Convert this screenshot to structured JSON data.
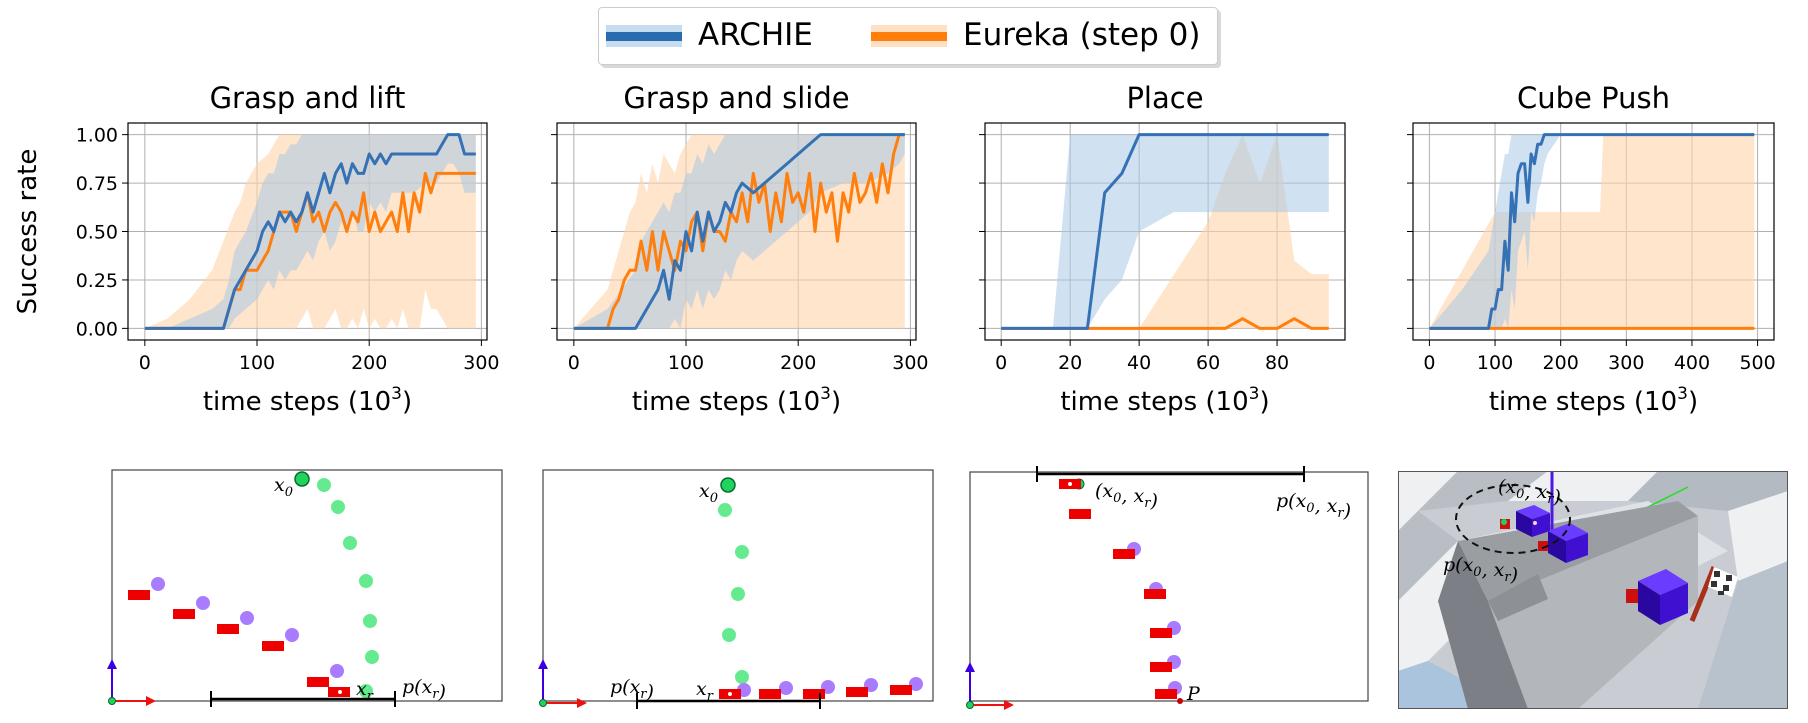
{
  "legend": [
    {
      "label": "ARCHIE",
      "color": "#2b6cb0"
    },
    {
      "label": "Eureka (step 0)",
      "color": "#ff7f0e"
    }
  ],
  "colors": {
    "archie": "#3571b5",
    "archie_band": "#aac8e6",
    "eureka": "#ff7f0e",
    "eureka_band": "#ffd3a8"
  },
  "chart_data": [
    {
      "type": "line",
      "title": "Grasp and lift",
      "xlabel": "time steps (10^3)",
      "ylabel": "Success rate",
      "xlim": [
        -15,
        305
      ],
      "ylim": [
        -0.06,
        1.06
      ],
      "xticks": [
        "0",
        "100",
        "200",
        "300"
      ],
      "yticks": [
        "0.00",
        "0.25",
        "0.50",
        "0.75",
        "1.00"
      ],
      "grid": true,
      "series": [
        {
          "name": "ARCHIE",
          "x": [
            0,
            20,
            40,
            60,
            70,
            75,
            80,
            90,
            100,
            105,
            110,
            115,
            120,
            125,
            130,
            135,
            140,
            145,
            150,
            155,
            160,
            165,
            170,
            175,
            180,
            185,
            190,
            195,
            200,
            205,
            210,
            215,
            220,
            230,
            240,
            250,
            260,
            270,
            275,
            280,
            285,
            290,
            295
          ],
          "y": [
            0,
            0,
            0,
            0,
            0,
            0.1,
            0.2,
            0.3,
            0.4,
            0.5,
            0.55,
            0.5,
            0.6,
            0.55,
            0.6,
            0.55,
            0.6,
            0.7,
            0.6,
            0.7,
            0.8,
            0.7,
            0.8,
            0.85,
            0.75,
            0.85,
            0.8,
            0.8,
            0.9,
            0.85,
            0.9,
            0.85,
            0.9,
            0.9,
            0.9,
            0.9,
            0.9,
            1.0,
            1.0,
            1.0,
            0.9,
            0.9,
            0.9
          ],
          "lower": [
            0,
            0,
            0,
            0,
            0,
            0,
            0.05,
            0.1,
            0.15,
            0.2,
            0.25,
            0.2,
            0.3,
            0.25,
            0.3,
            0.3,
            0.35,
            0.4,
            0.35,
            0.45,
            0.5,
            0.4,
            0.45,
            0.55,
            0.5,
            0.6,
            0.5,
            0.5,
            0.65,
            0.6,
            0.65,
            0.6,
            0.7,
            0.7,
            0.7,
            0.75,
            0.75,
            0.85,
            0.85,
            0.8,
            0.7,
            0.7,
            0.7
          ],
          "upper": [
            0,
            0,
            0.05,
            0.1,
            0.15,
            0.25,
            0.4,
            0.5,
            0.65,
            0.75,
            0.8,
            0.8,
            0.9,
            0.9,
            0.95,
            0.95,
            1,
            1,
            1,
            1,
            1,
            1,
            1,
            1,
            1,
            1,
            1,
            1,
            1,
            1,
            1,
            1,
            1,
            1,
            1,
            1,
            1,
            1,
            1,
            1,
            1,
            1,
            1
          ]
        },
        {
          "name": "Eureka (step 0)",
          "x": [
            0,
            20,
            40,
            60,
            70,
            80,
            85,
            90,
            100,
            110,
            115,
            120,
            125,
            130,
            135,
            140,
            145,
            150,
            155,
            160,
            165,
            170,
            175,
            180,
            185,
            190,
            195,
            200,
            205,
            210,
            215,
            220,
            225,
            230,
            235,
            240,
            245,
            250,
            255,
            260,
            270,
            280,
            290,
            295
          ],
          "y": [
            0,
            0,
            0,
            0,
            0,
            0.2,
            0.2,
            0.3,
            0.3,
            0.4,
            0.5,
            0.6,
            0.6,
            0.6,
            0.5,
            0.6,
            0.7,
            0.55,
            0.6,
            0.5,
            0.6,
            0.65,
            0.6,
            0.5,
            0.6,
            0.55,
            0.7,
            0.5,
            0.6,
            0.5,
            0.55,
            0.6,
            0.5,
            0.7,
            0.5,
            0.7,
            0.6,
            0.8,
            0.7,
            0.8,
            0.8,
            0.8,
            0.8,
            0.8
          ],
          "lower": [
            0,
            0,
            0,
            0,
            0,
            0,
            0,
            0,
            0,
            0,
            0,
            0,
            0,
            0,
            0,
            0.05,
            0.1,
            0,
            0,
            0,
            0.05,
            0.1,
            0,
            0,
            0.05,
            0,
            0.1,
            0,
            0.05,
            0,
            0,
            0.05,
            0,
            0.1,
            0,
            0,
            0,
            0.2,
            0.1,
            0.1,
            0,
            0,
            0,
            0
          ],
          "upper": [
            0,
            0.05,
            0.15,
            0.3,
            0.45,
            0.6,
            0.65,
            0.75,
            0.85,
            0.9,
            0.95,
            1,
            1,
            1,
            1,
            1,
            1,
            1,
            1,
            1,
            1,
            1,
            1,
            1,
            1,
            1,
            1,
            1,
            1,
            1,
            1,
            1,
            1,
            1,
            1,
            1,
            1,
            1,
            1,
            1,
            1,
            1,
            1,
            1
          ]
        }
      ]
    },
    {
      "type": "line",
      "title": "Grasp and slide",
      "xlabel": "time steps (10^3)",
      "ylabel": "",
      "xlim": [
        -15,
        305
      ],
      "ylim": [
        -0.06,
        1.06
      ],
      "xticks": [
        "0",
        "100",
        "200",
        "300"
      ],
      "yticks": [
        "0.00",
        "0.25",
        "0.50",
        "0.75",
        "1.00"
      ],
      "grid": true,
      "series": [
        {
          "name": "ARCHIE",
          "x": [
            0,
            30,
            55,
            60,
            70,
            75,
            80,
            85,
            90,
            95,
            100,
            105,
            110,
            115,
            120,
            125,
            130,
            135,
            140,
            145,
            150,
            160,
            170,
            180,
            190,
            200,
            210,
            220,
            240,
            260,
            280,
            290,
            295
          ],
          "y": [
            0,
            0,
            0,
            0.05,
            0.15,
            0.2,
            0.3,
            0.15,
            0.35,
            0.3,
            0.5,
            0.4,
            0.6,
            0.45,
            0.6,
            0.5,
            0.55,
            0.65,
            0.6,
            0.7,
            0.75,
            0.7,
            0.75,
            0.8,
            0.85,
            0.9,
            0.95,
            1.0,
            1.0,
            1.0,
            1.0,
            1.0,
            1.0
          ],
          "lower": [
            0,
            0,
            0,
            0,
            0,
            0,
            0,
            0,
            0.05,
            0,
            0.15,
            0.1,
            0.2,
            0.1,
            0.2,
            0.15,
            0.2,
            0.3,
            0.25,
            0.35,
            0.4,
            0.35,
            0.4,
            0.45,
            0.5,
            0.55,
            0.6,
            0.7,
            0.75,
            0.75,
            0.8,
            0.85,
            0.9
          ],
          "upper": [
            0,
            0.1,
            0.3,
            0.45,
            0.55,
            0.6,
            0.65,
            0.6,
            0.7,
            0.7,
            0.8,
            0.8,
            0.9,
            0.85,
            0.95,
            0.9,
            0.95,
            1,
            1,
            1,
            1,
            1,
            1,
            1,
            1,
            1,
            1,
            1,
            1,
            1,
            1,
            1,
            1
          ]
        },
        {
          "name": "Eureka (step 0)",
          "x": [
            0,
            30,
            35,
            40,
            45,
            50,
            55,
            60,
            65,
            70,
            75,
            80,
            85,
            90,
            95,
            100,
            105,
            110,
            115,
            120,
            125,
            130,
            135,
            140,
            145,
            150,
            155,
            160,
            165,
            170,
            175,
            180,
            185,
            190,
            195,
            200,
            205,
            210,
            215,
            220,
            225,
            230,
            235,
            240,
            245,
            250,
            255,
            260,
            265,
            270,
            275,
            280,
            285,
            290,
            295
          ],
          "y": [
            0,
            0,
            0.1,
            0.15,
            0.25,
            0.3,
            0.3,
            0.45,
            0.3,
            0.5,
            0.3,
            0.5,
            0.4,
            0.3,
            0.45,
            0.4,
            0.55,
            0.6,
            0.4,
            0.6,
            0.5,
            0.5,
            0.45,
            0.6,
            0.55,
            0.7,
            0.55,
            0.8,
            0.65,
            0.75,
            0.5,
            0.7,
            0.55,
            0.8,
            0.65,
            0.7,
            0.6,
            0.8,
            0.5,
            0.75,
            0.6,
            0.7,
            0.45,
            0.7,
            0.6,
            0.8,
            0.65,
            0.7,
            0.8,
            0.65,
            0.85,
            0.7,
            0.9,
            1.0,
            1.0
          ],
          "lower": [
            0,
            0,
            0,
            0,
            0,
            0,
            0,
            0,
            0,
            0,
            0,
            0,
            0,
            0,
            0,
            0,
            0,
            0,
            0,
            0,
            0,
            0,
            0,
            0,
            0,
            0,
            0,
            0,
            0,
            0,
            0,
            0,
            0,
            0,
            0,
            0,
            0,
            0,
            0,
            0,
            0,
            0,
            0,
            0,
            0,
            0,
            0,
            0,
            0,
            0,
            0,
            0,
            0,
            0,
            0
          ],
          "upper": [
            0,
            0.2,
            0.3,
            0.4,
            0.5,
            0.6,
            0.65,
            0.8,
            0.7,
            0.85,
            0.75,
            0.9,
            0.85,
            0.8,
            0.9,
            0.95,
            1,
            1,
            1,
            1,
            1,
            1,
            1,
            1,
            1,
            1,
            1,
            1,
            1,
            1,
            1,
            1,
            1,
            1,
            1,
            1,
            1,
            1,
            1,
            1,
            1,
            1,
            1,
            1,
            1,
            1,
            1,
            1,
            1,
            1,
            1,
            1,
            1,
            1,
            1
          ]
        }
      ]
    },
    {
      "type": "line",
      "title": "Place",
      "xlabel": "time steps (10^3)",
      "ylabel": "",
      "xlim": [
        -4.7,
        99.7
      ],
      "ylim": [
        -0.06,
        1.06
      ],
      "xticks": [
        "0",
        "20",
        "40",
        "60",
        "80"
      ],
      "yticks": [
        "0.00",
        "0.25",
        "0.50",
        "0.75",
        "1.00"
      ],
      "grid": true,
      "series": [
        {
          "name": "ARCHIE",
          "x": [
            0,
            10,
            15,
            20,
            25,
            30,
            35,
            40,
            45,
            50,
            60,
            70,
            80,
            90,
            95
          ],
          "y": [
            0,
            0,
            0,
            0,
            0,
            0.7,
            0.8,
            1.0,
            1.0,
            1.0,
            1.0,
            1.0,
            1.0,
            1.0,
            1.0
          ],
          "lower": [
            0,
            0,
            0,
            0,
            0,
            0.15,
            0.25,
            0.5,
            0.55,
            0.6,
            0.6,
            0.6,
            0.6,
            0.6,
            0.6
          ],
          "upper": [
            0,
            0,
            0,
            1,
            1,
            1,
            1,
            1,
            1,
            1,
            1,
            1,
            1,
            1,
            1
          ]
        },
        {
          "name": "Eureka (step 0)",
          "x": [
            0,
            20,
            40,
            60,
            65,
            70,
            75,
            80,
            85,
            90,
            95
          ],
          "y": [
            0,
            0,
            0,
            0,
            0,
            0.05,
            0,
            0,
            0.05,
            0,
            0
          ],
          "lower": [
            0,
            0,
            0,
            0,
            0,
            0,
            0,
            0,
            0,
            0,
            0
          ],
          "upper": [
            0,
            0,
            0,
            0.55,
            0.8,
            1.0,
            0.75,
            1.0,
            0.35,
            0.28,
            0.28
          ]
        }
      ]
    },
    {
      "type": "line",
      "title": "Cube Push",
      "xlabel": "time steps (10^3)",
      "ylabel": "",
      "xlim": [
        -25,
        525
      ],
      "ylim": [
        -0.06,
        1.06
      ],
      "xticks": [
        "0",
        "100",
        "200",
        "300",
        "400",
        "500"
      ],
      "yticks": [
        "0.00",
        "0.25",
        "0.50",
        "0.75",
        "1.00"
      ],
      "grid": true,
      "series": [
        {
          "name": "ARCHIE",
          "x": [
            0,
            50,
            90,
            95,
            100,
            105,
            110,
            115,
            120,
            125,
            130,
            135,
            140,
            145,
            150,
            155,
            160,
            165,
            170,
            175,
            180,
            190,
            200,
            250,
            300,
            400,
            495
          ],
          "y": [
            0,
            0,
            0,
            0.1,
            0.1,
            0.2,
            0.2,
            0.45,
            0.3,
            0.7,
            0.55,
            0.8,
            0.85,
            0.85,
            0.65,
            0.9,
            0.85,
            0.95,
            0.95,
            1.0,
            1.0,
            1.0,
            1.0,
            1.0,
            1.0,
            1.0,
            1.0
          ],
          "lower": [
            0,
            0,
            0,
            0,
            0,
            0,
            0,
            0.05,
            0,
            0.2,
            0.1,
            0.4,
            0.45,
            0.5,
            0.3,
            0.6,
            0.55,
            0.7,
            0.75,
            0.85,
            0.9,
            0.95,
            1,
            1,
            1,
            1,
            1
          ],
          "upper": [
            0,
            0.2,
            0.4,
            0.5,
            0.6,
            0.7,
            0.8,
            0.9,
            0.9,
            1,
            1,
            1,
            1,
            1,
            1,
            1,
            1,
            1,
            1,
            1,
            1,
            1,
            1,
            1,
            1,
            1,
            1
          ]
        },
        {
          "name": "Eureka (step 0)",
          "x": [
            0,
            100,
            150,
            200,
            240,
            255,
            260,
            265,
            270,
            280,
            300,
            350,
            400,
            450,
            495
          ],
          "y": [
            0,
            0,
            0,
            0,
            0,
            0,
            0,
            0,
            0,
            0,
            0,
            0,
            0,
            0,
            0
          ],
          "lower": [
            0,
            0,
            0,
            0,
            0,
            0,
            0,
            0,
            0,
            0,
            0,
            0,
            0,
            0,
            0
          ],
          "upper": [
            0,
            0.6,
            0.6,
            0.6,
            0.6,
            0.6,
            0.6,
            1,
            1,
            1,
            1,
            1,
            1,
            1,
            1
          ]
        }
      ]
    }
  ],
  "scenes": {
    "grasp_lift": {
      "x0_label": "x0",
      "xr_label": "xr",
      "p_label": "p(xr)"
    },
    "grasp_slide": {
      "x0_label": "x0",
      "xr_label": "xr",
      "p_label": "p(xr)"
    },
    "place": {
      "pair_label": "(x0, xr)",
      "p_label": "p(x0, xr)",
      "P_label": "P"
    },
    "cube_push": {
      "pair_label": "(x0, xr)",
      "p_label": "p(x0, xr)"
    }
  }
}
